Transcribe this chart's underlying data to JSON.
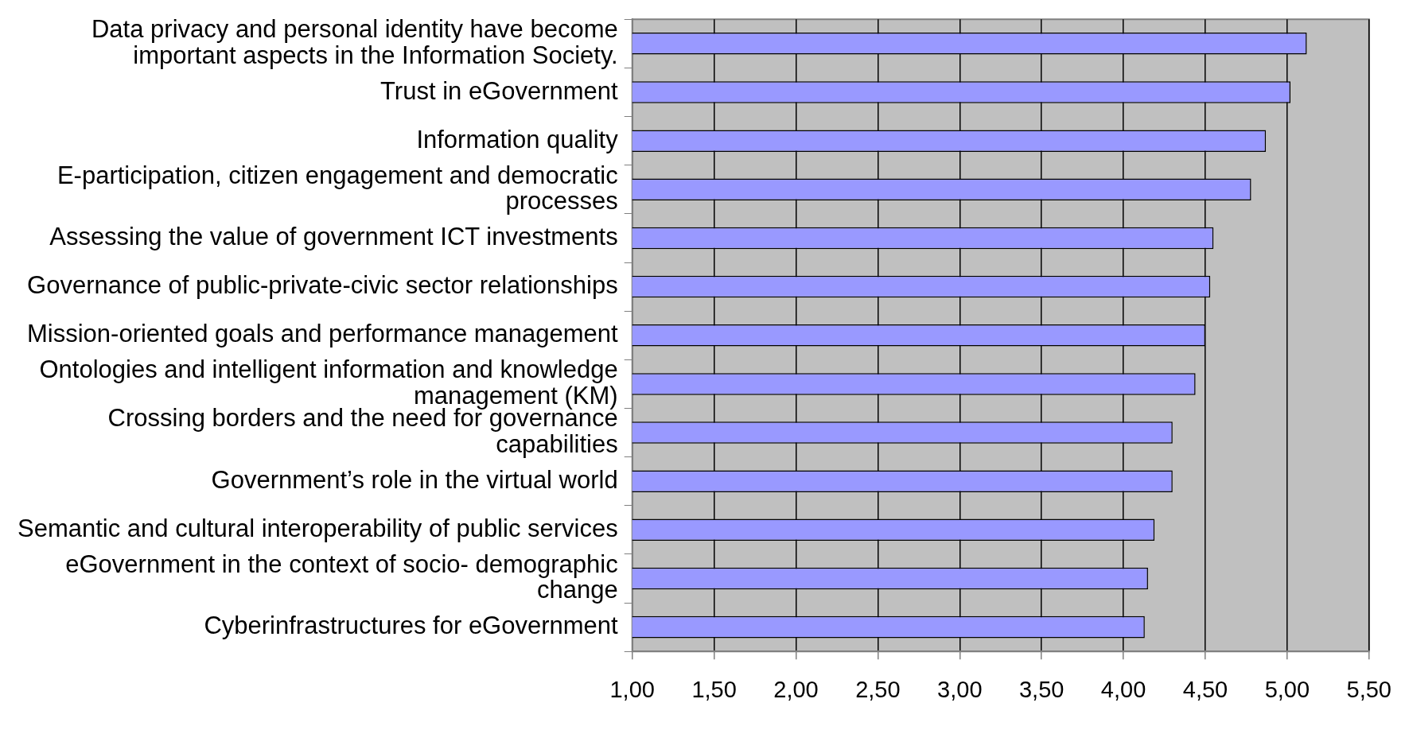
{
  "chart_data": {
    "type": "bar",
    "orientation": "horizontal",
    "categories": [
      "Data privacy and personal identity have become important aspects in the Information Society.",
      "Trust in eGovernment",
      "Information quality",
      "E-participation, citizen engagement and democratic processes",
      "Assessing the value of government ICT investments",
      "Governance of public-private-civic sector relationships",
      "Mission-oriented goals and performance management",
      "Ontologies and intelligent information and knowledge management (KM)",
      "Crossing borders and the need for governance capabilities",
      "Government’s role in the virtual world",
      "Semantic and cultural interoperability of public services",
      "eGovernment in the context of socio- demographic change",
      "Cyberinfrastructures for eGovernment"
    ],
    "values": [
      5.12,
      5.02,
      4.87,
      4.78,
      4.55,
      4.53,
      4.5,
      4.44,
      4.3,
      4.3,
      4.19,
      4.15,
      4.13
    ],
    "color": "#9999ff",
    "xlim": [
      1,
      5.5
    ],
    "xticks": [
      {
        "value": 1,
        "label": "1,00"
      },
      {
        "value": 1.5,
        "label": "1,50"
      },
      {
        "value": 2,
        "label": "2,00"
      },
      {
        "value": 2.5,
        "label": "2,50"
      },
      {
        "value": 3,
        "label": "3,00"
      },
      {
        "value": 3.5,
        "label": "3,50"
      },
      {
        "value": 4,
        "label": "4,00"
      },
      {
        "value": 4.5,
        "label": "4,50"
      },
      {
        "value": 5,
        "label": "5,00"
      },
      {
        "value": 5.5,
        "label": "5,50"
      }
    ],
    "grid": "x"
  }
}
